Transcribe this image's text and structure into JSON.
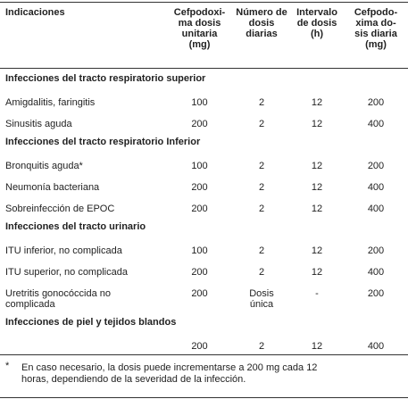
{
  "table": {
    "headers": [
      [
        "Indicaciones"
      ],
      [
        "Cefpodoxi-",
        "ma dosis",
        "unitaria",
        "(mg)"
      ],
      [
        "Número de",
        "dosis",
        "diarias"
      ],
      [
        "Intervalo",
        "de dosis",
        "(h)"
      ],
      [
        "Cefpodo-",
        "xima do-",
        "sis diaria",
        "(mg)"
      ]
    ],
    "sections": [
      {
        "title": "Infecciones del tracto respiratorio superior",
        "rows": [
          [
            [
              "Amigdalitis, faringitis"
            ],
            [
              "100"
            ],
            [
              "2"
            ],
            [
              "12"
            ],
            [
              "200"
            ]
          ],
          [
            [
              "Sinusitis aguda"
            ],
            [
              "200"
            ],
            [
              "2"
            ],
            [
              "12"
            ],
            [
              "400"
            ]
          ]
        ]
      },
      {
        "title": "Infecciones del tracto respiratorio Inferior",
        "rows": [
          [
            [
              "Bronquitis aguda*"
            ],
            [
              "100"
            ],
            [
              "2"
            ],
            [
              "12"
            ],
            [
              "200"
            ]
          ],
          [
            [
              "Neumonía bacteriana"
            ],
            [
              "200"
            ],
            [
              "2"
            ],
            [
              "12"
            ],
            [
              "400"
            ]
          ],
          [
            [
              "Sobreinfección de EPOC"
            ],
            [
              "200"
            ],
            [
              "2"
            ],
            [
              "12"
            ],
            [
              "400"
            ]
          ]
        ]
      },
      {
        "title": "Infecciones del tracto urinario",
        "rows": [
          [
            [
              "ITU inferior, no complicada"
            ],
            [
              "100"
            ],
            [
              "2"
            ],
            [
              "12"
            ],
            [
              "200"
            ]
          ],
          [
            [
              "ITU superior, no complicada"
            ],
            [
              "200"
            ],
            [
              "2"
            ],
            [
              "12"
            ],
            [
              "400"
            ]
          ],
          [
            [
              "Uretritis gonocóccida no",
              "complicada"
            ],
            [
              "200"
            ],
            [
              "Dosis",
              "única"
            ],
            [
              "-"
            ],
            [
              "200"
            ]
          ]
        ]
      },
      {
        "title": "Infecciones de piel y tejidos blandos",
        "rows": [
          [
            null,
            [
              "200"
            ],
            [
              "2"
            ],
            [
              "12"
            ],
            [
              "400"
            ]
          ]
        ]
      }
    ]
  },
  "footnote": {
    "marker": "*",
    "lines": [
      "En caso necesario, la dosis puede incrementarse a 200 mg cada 12",
      "horas, dependiendo de la severidad de la infección."
    ]
  }
}
